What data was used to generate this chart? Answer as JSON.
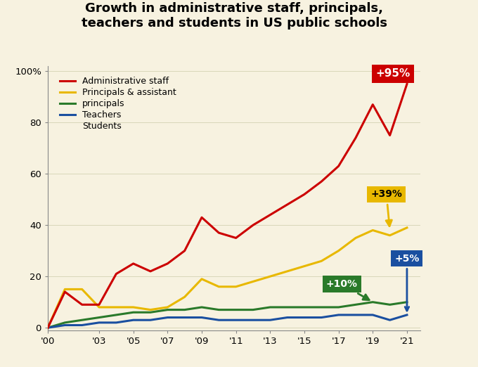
{
  "title": "Growth in administrative staff, principals,\nteachers and students in US public schools",
  "background_color": "#f7f2e0",
  "years": [
    2000,
    2001,
    2002,
    2003,
    2004,
    2005,
    2006,
    2007,
    2008,
    2009,
    2010,
    2011,
    2012,
    2013,
    2014,
    2015,
    2016,
    2017,
    2018,
    2019,
    2020,
    2021
  ],
  "admin_staff": [
    0,
    14,
    9,
    9,
    21,
    25,
    22,
    25,
    30,
    43,
    37,
    35,
    40,
    44,
    48,
    52,
    57,
    63,
    74,
    87,
    75,
    95
  ],
  "principals": [
    0,
    15,
    15,
    8,
    8,
    8,
    7,
    8,
    12,
    19,
    16,
    16,
    18,
    20,
    22,
    24,
    26,
    30,
    35,
    38,
    36,
    39
  ],
  "teachers": [
    0,
    2,
    3,
    4,
    5,
    6,
    6,
    7,
    7,
    8,
    7,
    7,
    7,
    8,
    8,
    8,
    8,
    8,
    9,
    10,
    9,
    10
  ],
  "students": [
    0,
    1,
    1,
    2,
    2,
    3,
    3,
    4,
    4,
    4,
    3,
    3,
    3,
    3,
    4,
    4,
    4,
    5,
    5,
    5,
    3,
    5
  ],
  "admin_color": "#cc0000",
  "principals_color": "#e8b800",
  "teachers_color": "#2a7a2a",
  "students_color": "#1a4fa0",
  "xlim": [
    2000,
    2021.8
  ],
  "ylim": [
    -1,
    102
  ],
  "xtick_labels": [
    "'00",
    "'03",
    "'05",
    "'07",
    "'09",
    "'11",
    "'13",
    "'15",
    "'17",
    "'19",
    "'21"
  ],
  "xtick_positions": [
    2000,
    2003,
    2005,
    2007,
    2009,
    2011,
    2013,
    2015,
    2017,
    2019,
    2021
  ],
  "ytick_labels": [
    "0",
    "20",
    "40",
    "60",
    "80",
    "100%"
  ],
  "ytick_positions": [
    0,
    20,
    40,
    60,
    80,
    100
  ],
  "legend_entries": [
    "Administrative staff",
    "Principals & assistant",
    "principals",
    "Teachers",
    "Students"
  ],
  "legend_colors": [
    "#cc0000",
    "#e8b800",
    "#2a7a2a",
    "#1a4fa0",
    "none"
  ]
}
